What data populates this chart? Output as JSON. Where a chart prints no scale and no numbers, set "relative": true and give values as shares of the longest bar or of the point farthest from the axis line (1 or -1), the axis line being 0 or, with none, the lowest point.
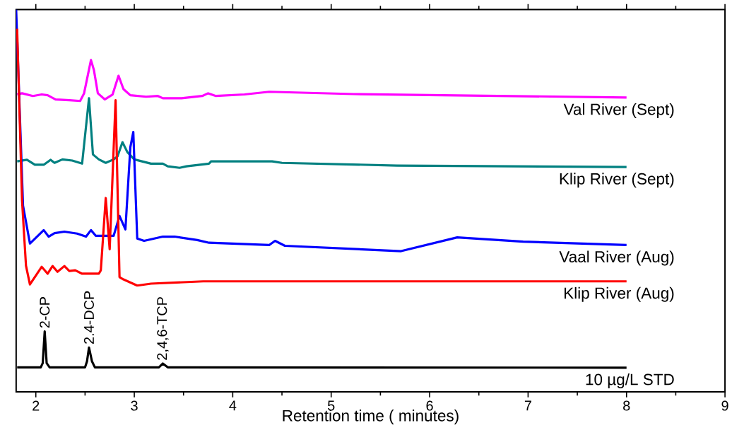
{
  "chart_data": {
    "type": "line",
    "relative": true,
    "xlabel": "Retention time ( minutes)",
    "xlim": [
      1.8,
      9
    ],
    "xticks": [
      2,
      3,
      4,
      5,
      6,
      7,
      8,
      9
    ],
    "series": [
      {
        "name": "Val River (Sept)",
        "color": "#ff00ff",
        "x": [
          1.81,
          1.86,
          1.97,
          2.06,
          2.12,
          2.2,
          2.34,
          2.45,
          2.49,
          2.56,
          2.59,
          2.63,
          2.7,
          2.78,
          2.84,
          2.89,
          2.96,
          3.12,
          3.24,
          3.29,
          3.48,
          3.69,
          3.75,
          3.83,
          4.12,
          4.37,
          5.23,
          8.0
        ],
        "values": [
          0.778,
          0.781,
          0.774,
          0.778,
          0.776,
          0.765,
          0.763,
          0.761,
          0.781,
          0.868,
          0.842,
          0.781,
          0.765,
          0.778,
          0.827,
          0.792,
          0.776,
          0.772,
          0.774,
          0.768,
          0.768,
          0.774,
          0.781,
          0.774,
          0.778,
          0.785,
          0.779,
          0.77
        ]
      },
      {
        "name": "Klip River (Sept)",
        "color": "#008080",
        "x": [
          1.81,
          1.91,
          1.99,
          2.08,
          2.15,
          2.19,
          2.27,
          2.37,
          2.47,
          2.54,
          2.58,
          2.64,
          2.71,
          2.79,
          2.83,
          2.88,
          2.93,
          3.0,
          3.17,
          3.29,
          3.34,
          3.46,
          3.53,
          3.76,
          3.78,
          4.12,
          4.4,
          4.5,
          5.67,
          8.0
        ],
        "values": [
          0.603,
          0.607,
          0.594,
          0.594,
          0.607,
          0.599,
          0.608,
          0.605,
          0.597,
          0.768,
          0.621,
          0.608,
          0.599,
          0.608,
          0.616,
          0.653,
          0.627,
          0.608,
          0.597,
          0.597,
          0.59,
          0.586,
          0.59,
          0.597,
          0.603,
          0.603,
          0.603,
          0.599,
          0.592,
          0.588
        ]
      },
      {
        "name": "Vaal River (Aug)",
        "color": "#0000ff",
        "x": [
          1.8,
          1.87,
          1.94,
          2.08,
          2.13,
          2.19,
          2.29,
          2.42,
          2.51,
          2.56,
          2.61,
          2.79,
          2.85,
          2.91,
          2.96,
          2.99,
          3.03,
          3.1,
          3.29,
          3.41,
          3.64,
          3.76,
          4.37,
          4.43,
          4.53,
          5.71,
          6.28,
          6.95,
          8.0
        ],
        "values": [
          1.0,
          0.487,
          0.388,
          0.423,
          0.406,
          0.415,
          0.419,
          0.414,
          0.406,
          0.423,
          0.408,
          0.408,
          0.46,
          0.425,
          0.64,
          0.68,
          0.401,
          0.395,
          0.406,
          0.406,
          0.397,
          0.39,
          0.384,
          0.395,
          0.382,
          0.368,
          0.404,
          0.393,
          0.384
        ]
      },
      {
        "name": "Klip River (Aug)",
        "color": "#ff0000",
        "x": [
          1.81,
          1.86,
          1.9,
          1.94,
          2.06,
          2.12,
          2.17,
          2.22,
          2.29,
          2.34,
          2.4,
          2.47,
          2.64,
          2.66,
          2.71,
          2.75,
          2.81,
          2.85,
          2.89,
          3.03,
          3.17,
          3.7,
          8.0
        ],
        "values": [
          0.95,
          0.5,
          0.33,
          0.281,
          0.327,
          0.309,
          0.329,
          0.314,
          0.329,
          0.316,
          0.318,
          0.309,
          0.309,
          0.318,
          0.507,
          0.373,
          0.763,
          0.3,
          0.294,
          0.278,
          0.283,
          0.289,
          0.289
        ]
      },
      {
        "name": "10 µg/L STD",
        "color": "#000000",
        "x": [
          1.81,
          2.05,
          2.07,
          2.09,
          2.11,
          2.14,
          2.5,
          2.52,
          2.54,
          2.57,
          2.6,
          3.25,
          3.29,
          3.34,
          8.0
        ],
        "values": [
          0.064,
          0.064,
          0.075,
          0.158,
          0.075,
          0.064,
          0.064,
          0.08,
          0.116,
          0.08,
          0.064,
          0.064,
          0.074,
          0.064,
          0.063
        ]
      }
    ],
    "annotations": [
      {
        "text": "2-CP",
        "x": 2.09,
        "y": 0.158
      },
      {
        "text": "2.4-DCP",
        "x": 2.54,
        "y": 0.116
      },
      {
        "text": "2,4,6-TCP",
        "x": 3.29,
        "y": 0.074
      }
    ]
  }
}
